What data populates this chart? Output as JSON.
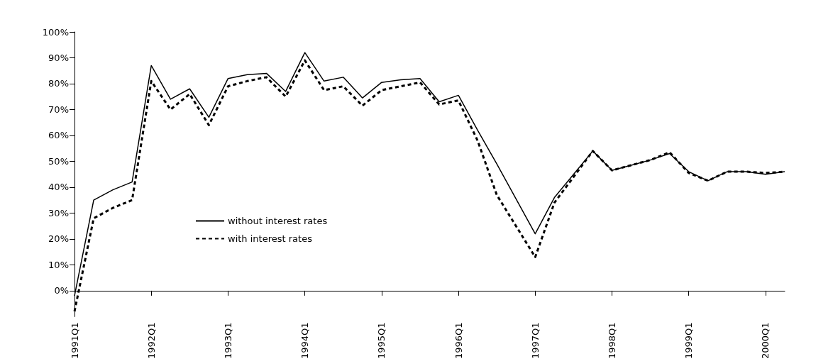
{
  "chart_data": {
    "type": "line",
    "categories": [
      "1991Q1",
      null,
      null,
      null,
      "1992Q1",
      null,
      null,
      null,
      "1993Q1",
      null,
      null,
      null,
      "1994Q1",
      null,
      null,
      null,
      "1995Q1",
      null,
      null,
      null,
      "1996Q1",
      null,
      null,
      null,
      "1997Q1",
      null,
      null,
      null,
      "1998Q1",
      null,
      null,
      null,
      "1999Q1",
      null,
      null,
      null,
      "2000Q1",
      null
    ],
    "series": [
      {
        "name": "without interest rates",
        "color": "#000000",
        "line_style": "solid",
        "values": [
          -2,
          35,
          39,
          42,
          87,
          74,
          78,
          67,
          82,
          83.5,
          84,
          77,
          92,
          81,
          82.5,
          74.5,
          80.5,
          81.5,
          82,
          73,
          75.5,
          62,
          49,
          35.5,
          22,
          36,
          45,
          54,
          46.5,
          48.5,
          50.5,
          53,
          46,
          42.5,
          46,
          46,
          45,
          46
        ]
      },
      {
        "name": "with interest rates",
        "color": "#000000",
        "line_style": "dashed",
        "values": [
          -8,
          28,
          32,
          35,
          81,
          70,
          76,
          64,
          79,
          81,
          82.5,
          75,
          89,
          77.5,
          79,
          71.5,
          77.5,
          79,
          80.5,
          72,
          73.5,
          58,
          37,
          25,
          13,
          34,
          44,
          54,
          46.5,
          48.5,
          50.5,
          53.5,
          45.5,
          42.5,
          46,
          46,
          45.5,
          46
        ]
      }
    ],
    "ylim": [
      -10,
      100
    ],
    "yticks": [
      {
        "value": 0,
        "label": "0%"
      },
      {
        "value": 10,
        "label": "10%"
      },
      {
        "value": 20,
        "label": "20%"
      },
      {
        "value": 30,
        "label": "30%"
      },
      {
        "value": 40,
        "label": "40%"
      },
      {
        "value": 50,
        "label": "50%"
      },
      {
        "value": 60,
        "label": "60%"
      },
      {
        "value": 70,
        "label": "70%"
      },
      {
        "value": 80,
        "label": "80%"
      },
      {
        "value": 90,
        "label": "90%"
      },
      {
        "value": 100,
        "label": "100%"
      }
    ],
    "legend": "bottom left",
    "marker": "none"
  }
}
